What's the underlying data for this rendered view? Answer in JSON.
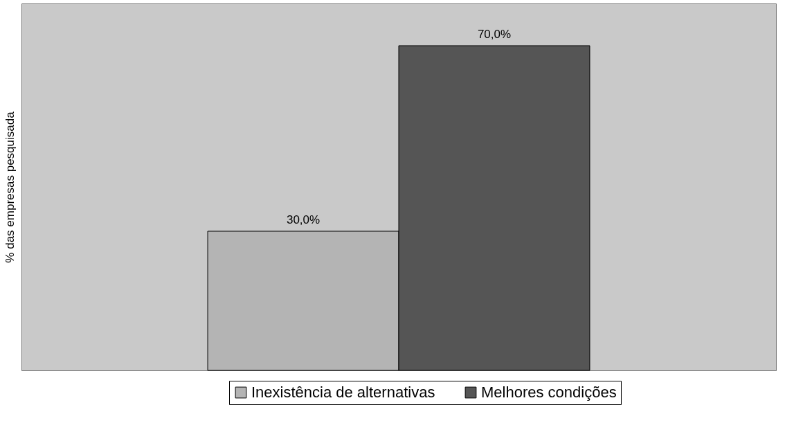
{
  "chart_data": {
    "type": "bar",
    "ylabel": "% das empresas pesquisada",
    "categories": [
      null
    ],
    "series": [
      {
        "name": "Inexistência de alternativas",
        "color": "#b4b4b4",
        "values": [
          30
        ],
        "value_labels": [
          "30,0%"
        ]
      },
      {
        "name": "Melhores condições",
        "color": "#555555",
        "values": [
          70
        ],
        "value_labels": [
          "70,0%"
        ]
      }
    ],
    "legend": "bottom"
  }
}
